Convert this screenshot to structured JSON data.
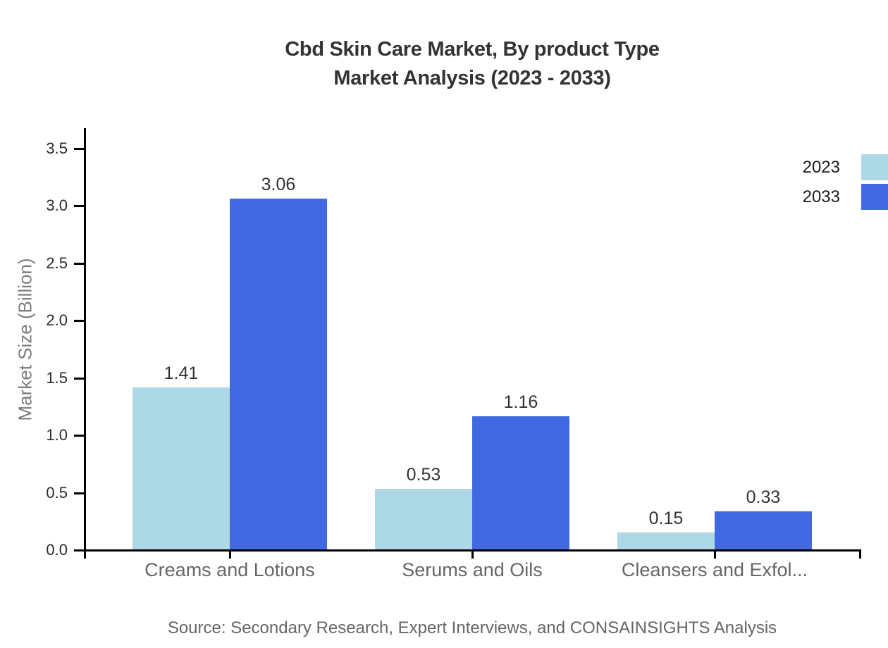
{
  "title": {
    "line1": "Cbd Skin Care Market, By product Type",
    "line2": "Market Analysis (2023 - 2033)"
  },
  "source": "Source: Secondary Research, Expert Interviews, and CONSAINSIGHTS Analysis",
  "chart_data": {
    "type": "bar",
    "title": "Cbd Skin Care Market, By product Type Market Analysis (2023 - 2033)",
    "categories": [
      "Creams and Lotions",
      "Serums and Oils",
      "Cleansers and Exfol..."
    ],
    "series": [
      {
        "name": "2023",
        "color": "#ADD8E6",
        "values": [
          1.41,
          0.53,
          0.15
        ]
      },
      {
        "name": "2033",
        "color": "#4169E1",
        "values": [
          3.06,
          1.16,
          0.33
        ]
      }
    ],
    "xlabel": "",
    "ylabel": "Market Size (Billion)",
    "ylim": [
      0,
      3.5
    ],
    "ytick_step": 0.5,
    "yticks": [
      "0.0",
      "0.5",
      "1.0",
      "1.5",
      "2.0",
      "2.5",
      "3.0",
      "3.5"
    ],
    "grid": false,
    "legend_position": "right-top",
    "value_labels_shown": true,
    "colors": {
      "axis": "#000000",
      "title_text": "#333333",
      "tick_label_text": "#2b2b2b",
      "category_label_text": "#666666",
      "value_label_text": "#333333",
      "y_axis_title_text": "#7c7c7c",
      "source_text": "#666666",
      "background": "#ffffff"
    }
  }
}
